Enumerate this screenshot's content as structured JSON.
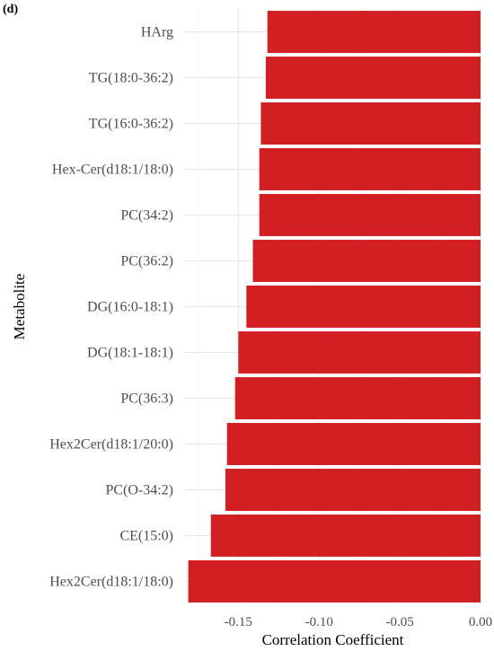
{
  "panel_label": "(d)",
  "chart_data": {
    "type": "bar",
    "orientation": "horizontal",
    "xlabel": "Correlation Coefficient",
    "ylabel": "Metabolite",
    "xlim": [
      -0.183,
      0.0
    ],
    "xticks": [
      -0.15,
      -0.1,
      -0.05,
      0.0
    ],
    "xtick_labels": [
      "-0.15",
      "-0.10",
      "-0.05",
      "0.00"
    ],
    "grid": true,
    "bar_color": "#D21F22",
    "categories": [
      "HArg",
      "TG(18:0-36:2)",
      "TG(16:0-36:2)",
      "Hex-Cer(d18:1/18:0)",
      "PC(34:2)",
      "PC(36:2)",
      "DG(16:0-18:1)",
      "DG(18:1-18:1)",
      "PC(36:3)",
      "Hex2Cer(d18:1/20:0)",
      "PC(O-34:2)",
      "CE(15:0)",
      "Hex2Cer(d18:1/18:0)"
    ],
    "values": [
      -0.132,
      -0.133,
      -0.136,
      -0.137,
      -0.137,
      -0.141,
      -0.145,
      -0.15,
      -0.152,
      -0.157,
      -0.158,
      -0.167,
      -0.181
    ]
  }
}
